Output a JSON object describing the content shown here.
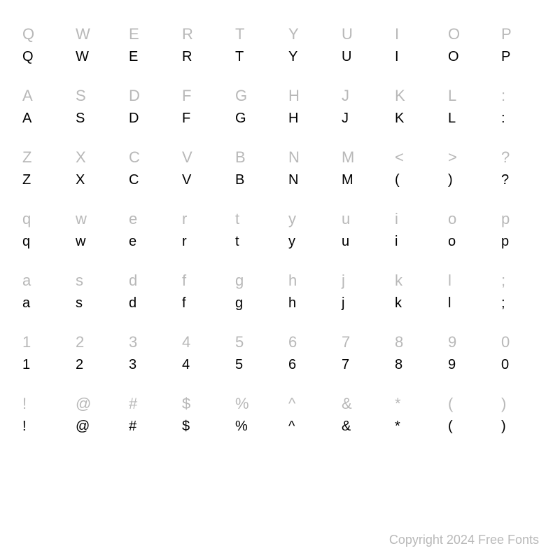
{
  "grid": {
    "columns": 10,
    "background_color": "#ffffff",
    "ref_color": "#b8b8b8",
    "glyph_color": "#000000",
    "ref_fontsize": 22,
    "glyph_fontsize": 20,
    "rows": [
      {
        "refs": [
          "Q",
          "W",
          "E",
          "R",
          "T",
          "Y",
          "U",
          "I",
          "O",
          "P"
        ],
        "glyphs": [
          "Q",
          "W",
          "E",
          "R",
          "T",
          "Y",
          "U",
          "I",
          "O",
          "P"
        ]
      },
      {
        "refs": [
          "A",
          "S",
          "D",
          "F",
          "G",
          "H",
          "J",
          "K",
          "L",
          ":"
        ],
        "glyphs": [
          "A",
          "S",
          "D",
          "F",
          "G",
          "H",
          "J",
          "K",
          "L",
          ":"
        ]
      },
      {
        "refs": [
          "Z",
          "X",
          "C",
          "V",
          "B",
          "N",
          "M",
          "<",
          ">",
          "?"
        ],
        "glyphs": [
          "Z",
          "X",
          "C",
          "V",
          "B",
          "N",
          "M",
          "(",
          ")",
          "?"
        ]
      },
      {
        "refs": [
          "q",
          "w",
          "e",
          "r",
          "t",
          "y",
          "u",
          "i",
          "o",
          "p"
        ],
        "glyphs": [
          "q",
          "w",
          "e",
          "r",
          "t",
          "y",
          "u",
          "i",
          "o",
          "p"
        ]
      },
      {
        "refs": [
          "a",
          "s",
          "d",
          "f",
          "g",
          "h",
          "j",
          "k",
          "l",
          ";"
        ],
        "glyphs": [
          "a",
          "s",
          "d",
          "f",
          "g",
          "h",
          "j",
          "k",
          "l",
          ";"
        ]
      },
      {
        "refs": [
          "1",
          "2",
          "3",
          "4",
          "5",
          "6",
          "7",
          "8",
          "9",
          "0"
        ],
        "glyphs": [
          "1",
          "2",
          "3",
          "4",
          "5",
          "6",
          "7",
          "8",
          "9",
          "0"
        ]
      },
      {
        "refs": [
          "!",
          "@",
          "#",
          "$",
          "%",
          "^",
          "&",
          "*",
          "(",
          ")"
        ],
        "glyphs": [
          "!",
          "@",
          "#",
          "$",
          "%",
          "^",
          "&",
          "*",
          "(",
          ")"
        ]
      }
    ]
  },
  "copyright": "Copyright 2024 Free Fonts"
}
